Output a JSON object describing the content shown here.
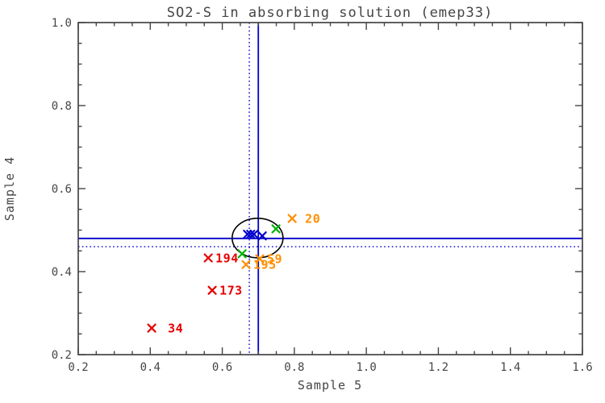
{
  "chart_data": {
    "type": "scatter",
    "title": "SO2-S in absorbing solution (emep33)",
    "xlabel": "Sample 5",
    "ylabel": "Sample 4",
    "xlim": [
      0.2,
      1.6
    ],
    "ylim": [
      0.2,
      1.0
    ],
    "xticks": [
      0.2,
      0.4,
      0.6,
      0.8,
      1.0,
      1.2,
      1.4,
      1.6
    ],
    "yticks": [
      0.2,
      0.4,
      0.6,
      0.8,
      1.0
    ],
    "minor_tick_step": 0.05,
    "grid": false,
    "legend": "none",
    "axis_color": "#454545",
    "background_color": "#ffffff",
    "series": [
      {
        "name": "labs-blue-cluster",
        "color": "#0000cc",
        "points": [
          {
            "x": 0.67,
            "y": 0.49
          },
          {
            "x": 0.679,
            "y": 0.49
          },
          {
            "x": 0.688,
            "y": 0.49
          },
          {
            "x": 0.711,
            "y": 0.486
          }
        ]
      },
      {
        "name": "labs-green",
        "color": "#00b400",
        "points": [
          {
            "x": 0.749,
            "y": 0.503
          },
          {
            "x": 0.655,
            "y": 0.443
          }
        ]
      },
      {
        "name": "labs-orange",
        "color": "#ff8f00",
        "points": [
          {
            "x": 0.794,
            "y": 0.528,
            "label": "20",
            "label_dx": 16
          },
          {
            "x": 0.666,
            "y": 0.417,
            "label": "195",
            "label_dx": 9
          },
          {
            "x": 0.704,
            "y": 0.431,
            "label": "59",
            "label_dx": 9
          }
        ]
      },
      {
        "name": "labs-red",
        "color": "#e60000",
        "points": [
          {
            "x": 0.561,
            "y": 0.433,
            "label": "194",
            "label_dx": 9
          },
          {
            "x": 0.572,
            "y": 0.355,
            "label": "173",
            "label_dx": 9
          },
          {
            "x": 0.404,
            "y": 0.264,
            "label": "34",
            "label_dx": 20
          }
        ]
      }
    ],
    "reference_lines": {
      "solid": {
        "x": 0.7,
        "y": 0.48,
        "color": "#0000cc",
        "style": "solid"
      },
      "dotted": {
        "x": 0.675,
        "y": 0.46,
        "color": "#0000cc",
        "style": "dotted"
      }
    },
    "ellipse": {
      "cx": 0.698,
      "cy": 0.481,
      "rx": 0.0706,
      "ry": 0.0476,
      "color": "#000000"
    }
  }
}
